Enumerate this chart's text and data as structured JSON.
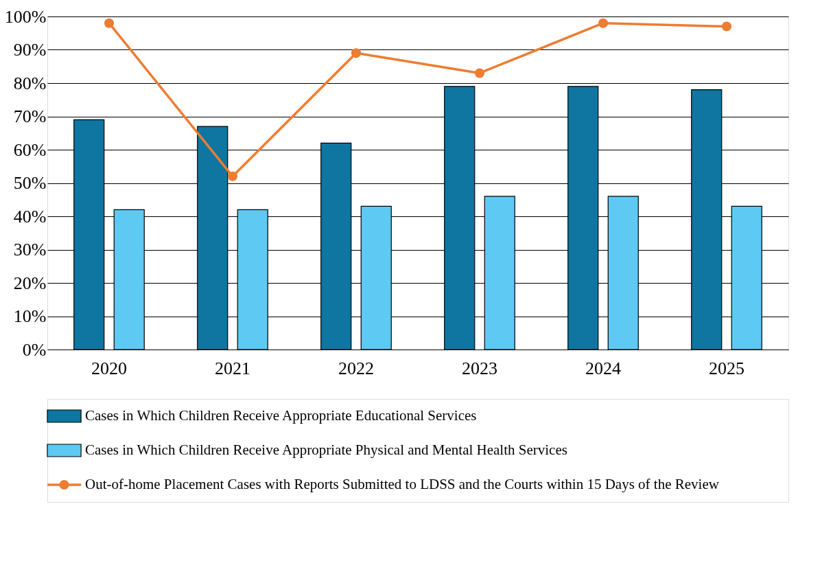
{
  "chart_data": {
    "type": "bar",
    "categories": [
      "2020",
      "2021",
      "2022",
      "2023",
      "2024",
      "2025"
    ],
    "series": [
      {
        "name": "Cases in Which Children Receive Appropriate Educational Services",
        "color": "#0e76a0",
        "values": [
          69,
          67,
          62,
          79,
          79,
          78
        ]
      },
      {
        "name": "Cases in Which Children Receive Appropriate Physical and Mental Health Services",
        "color": "#5ec9f2",
        "values": [
          42,
          42,
          43,
          46,
          46,
          43
        ]
      },
      {
        "name": "Out-of-home Placement Cases with Reports Submitted to LDSS and the Courts within 15 Days of the Review",
        "type": "line",
        "color": "#ed7d31",
        "values": [
          98,
          52,
          89,
          83,
          98,
          97
        ]
      }
    ],
    "ylim": [
      0,
      100
    ],
    "yticks": [
      {
        "value": 0,
        "label": "0%"
      },
      {
        "value": 10,
        "label": "10%"
      },
      {
        "value": 20,
        "label": "20%"
      },
      {
        "value": 30,
        "label": "30%"
      },
      {
        "value": 40,
        "label": "40%"
      },
      {
        "value": 50,
        "label": "50%"
      },
      {
        "value": 60,
        "label": "60%"
      },
      {
        "value": 70,
        "label": "70%"
      },
      {
        "value": 80,
        "label": "80%"
      },
      {
        "value": 90,
        "label": "90%"
      },
      {
        "value": 100,
        "label": "100%"
      }
    ],
    "grid": "y",
    "legend": "bottom",
    "marker": "circle",
    "line_style": "solid"
  }
}
